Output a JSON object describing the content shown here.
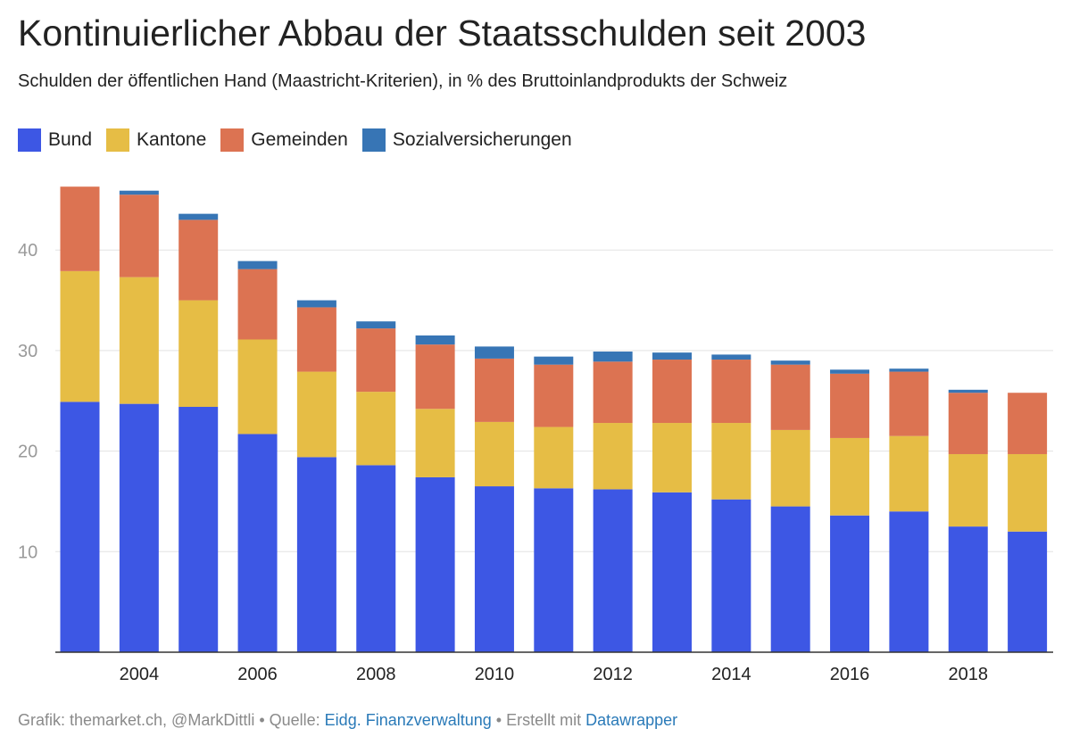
{
  "chart_data": {
    "type": "bar",
    "stacked": true,
    "title": "Kontinuierlicher Abbau der Staatsschulden seit 2003",
    "subtitle": "Schulden der öffentlichen Hand (Maastricht-Kriterien), in % des Bruttoinlandprodukts der Schweiz",
    "legend_position": "top-left",
    "grid": true,
    "ylim": [
      0,
      46.5
    ],
    "y_ticks": [
      10,
      20,
      30,
      40
    ],
    "x_tick_labels": [
      "2004",
      "2006",
      "2008",
      "2010",
      "2012",
      "2014",
      "2016",
      "2018"
    ],
    "categories": [
      2003,
      2004,
      2005,
      2006,
      2007,
      2008,
      2009,
      2010,
      2011,
      2012,
      2013,
      2014,
      2015,
      2016,
      2017,
      2018,
      2019
    ],
    "series": [
      {
        "name": "Bund",
        "color": "#3d57e4",
        "values": [
          24.9,
          24.7,
          24.4,
          21.7,
          19.4,
          18.6,
          17.4,
          16.5,
          16.3,
          16.2,
          15.9,
          15.2,
          14.5,
          13.6,
          14.0,
          12.5,
          12.0
        ]
      },
      {
        "name": "Kantone",
        "color": "#e6bd45",
        "values": [
          13.0,
          12.6,
          10.6,
          9.4,
          8.5,
          7.3,
          6.8,
          6.4,
          6.1,
          6.6,
          6.9,
          7.6,
          7.6,
          7.7,
          7.5,
          7.2,
          7.7
        ]
      },
      {
        "name": "Gemeinden",
        "color": "#dc7352",
        "values": [
          8.4,
          8.2,
          8.0,
          7.0,
          6.4,
          6.3,
          6.4,
          6.3,
          6.2,
          6.1,
          6.3,
          6.3,
          6.5,
          6.4,
          6.4,
          6.1,
          6.1
        ]
      },
      {
        "name": "Sozialversicherungen",
        "color": "#3775b5",
        "values": [
          0.0,
          0.4,
          0.6,
          0.8,
          0.7,
          0.7,
          0.9,
          1.2,
          0.8,
          1.0,
          0.7,
          0.5,
          0.4,
          0.4,
          0.3,
          0.3,
          0.0
        ]
      }
    ]
  },
  "footer": {
    "prefix": "Grafik: themarket.ch, @MarkDittli • Quelle: ",
    "source_link": "Eidg. Finanzverwaltung",
    "middle": " • Erstellt mit ",
    "tool_link": "Datawrapper"
  }
}
